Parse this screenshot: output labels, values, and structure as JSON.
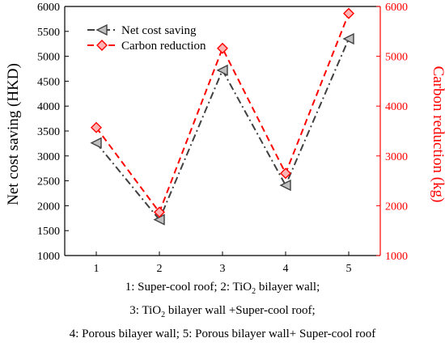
{
  "chart_data": {
    "type": "line",
    "x": [
      1,
      2,
      3,
      4,
      5
    ],
    "xticks": [
      "1",
      "2",
      "3",
      "4",
      "5"
    ],
    "xlim": [
      0.5,
      5.5
    ],
    "ylabel_left": "Net cost saving (HKD)",
    "ylabel_right": "Carbon reduction (kg)",
    "ylim_left": [
      1000,
      6000
    ],
    "ylim_right": [
      1000,
      6000
    ],
    "yticks_left": [
      "1000",
      "1500",
      "2000",
      "2500",
      "3000",
      "3500",
      "4000",
      "4500",
      "5000",
      "5500",
      "6000"
    ],
    "yticks_right": [
      "1000",
      "2000",
      "3000",
      "4000",
      "5000",
      "6000"
    ],
    "legend_position": "top-left",
    "grid": false,
    "series": [
      {
        "name": "Net cost saving",
        "axis": "left",
        "values": [
          3260,
          1720,
          4720,
          2410,
          5350
        ],
        "color": "#404040",
        "marker": "left-triangle",
        "line_style": "dash-dot"
      },
      {
        "name": "Carbon reduction",
        "axis": "right",
        "values": [
          3570,
          1870,
          5160,
          2650,
          5860
        ],
        "color": "#ff0000",
        "marker": "diamond",
        "line_style": "dashed"
      }
    ]
  },
  "caption": {
    "line1_part1": "1: Super-cool roof; 2: TiO",
    "line1_sub": "2",
    "line1_part2": " bilayer wall;",
    "line2_part1": "3: TiO",
    "line2_sub": "2",
    "line2_part2": " bilayer wall +Super-cool roof;",
    "line3": "4: Porous bilayer wall; 5: Porous bilayer wall+ Super-cool roof"
  }
}
